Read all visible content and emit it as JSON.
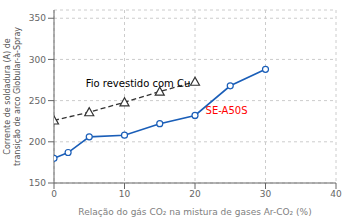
{
  "chart_data": {
    "type": "line",
    "xlabel": "Relação do gás CO₂ na mistura de gases Ar-CO₂ (%)",
    "ylabel": "Corrente de soldadura (A) de\ntransição de arco Globular-à-Spray",
    "xlim": [
      0,
      40
    ],
    "ylim": [
      150,
      360
    ],
    "xticks": [
      0,
      10,
      20,
      30,
      40
    ],
    "yticks": [
      150,
      200,
      250,
      300,
      350
    ],
    "grid": true,
    "series": [
      {
        "x": [
          0,
          2,
          5,
          10,
          15,
          20,
          25,
          30
        ],
        "values": [
          180,
          187,
          206,
          208,
          222,
          232,
          268,
          288
        ],
        "color": "#1a5eb8",
        "marker": "circle",
        "line_style": "solid"
      },
      {
        "x": [
          0,
          5,
          10,
          15,
          20
        ],
        "values": [
          226,
          236,
          248,
          261,
          273
        ],
        "color": "#333333",
        "marker": "triangle",
        "line_style": "dashed"
      }
    ],
    "annotations": [
      {
        "text": "SE-A50S",
        "x": 21.5,
        "y": 238,
        "color": "red"
      },
      {
        "text": "Fio revestido com Cu",
        "x": 4.5,
        "y": 271,
        "color": "black"
      }
    ]
  }
}
